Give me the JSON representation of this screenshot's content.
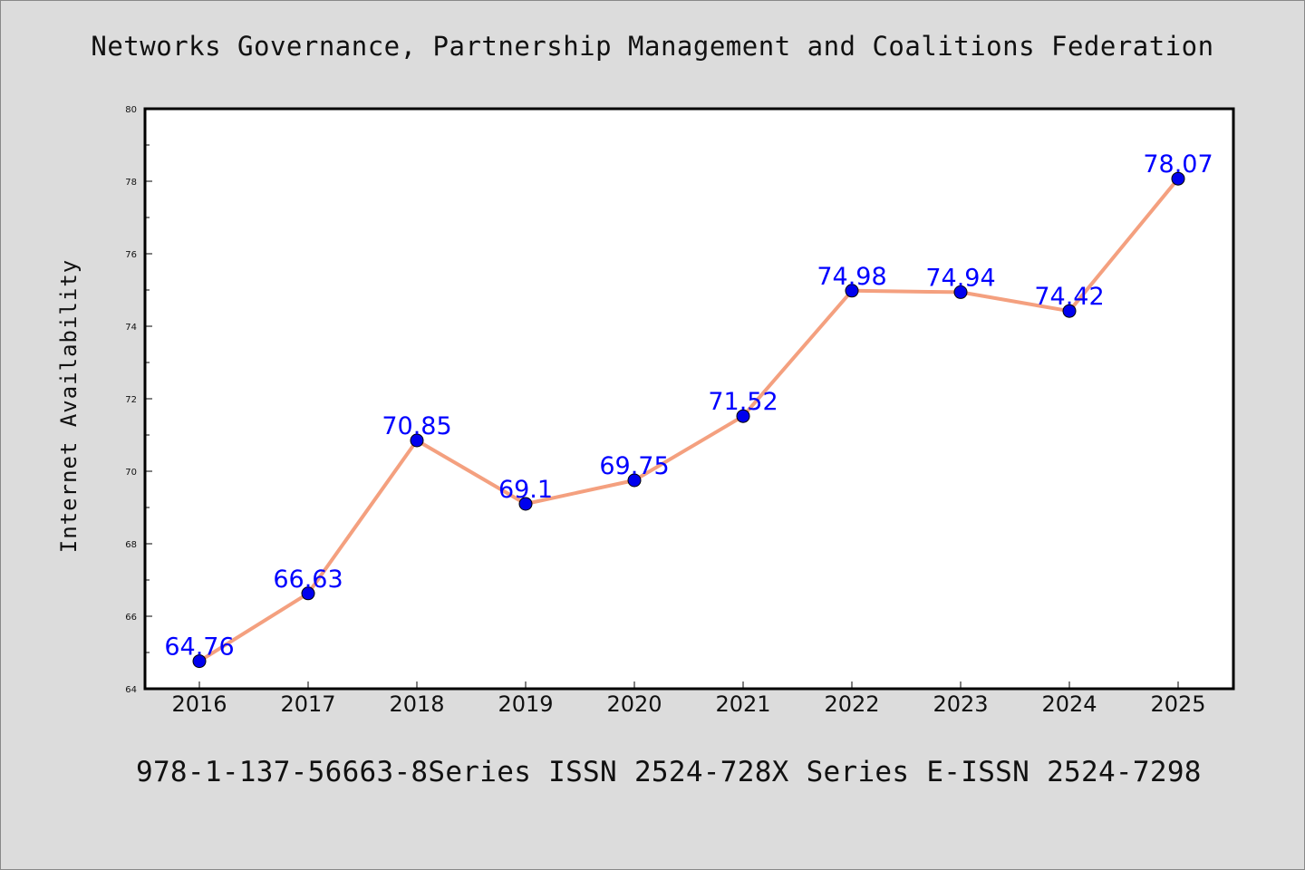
{
  "title": "Networks Governance, Partnership Management and Coalitions Federation",
  "footer": "978-1-137-56663-8Series ISSN 2524-728X Series E-ISSN 2524-7298",
  "colors": {
    "background": "#dcdcdc",
    "plot_background": "#ffffff",
    "line": "#f4a07f",
    "marker": "#0000ee",
    "data_label": "#0000ff"
  },
  "chart_data": {
    "type": "line",
    "title": "Networks Governance, Partnership Management and Coalitions Federation",
    "xlabel": "",
    "ylabel": "Internet Availability",
    "categories": [
      "2016",
      "2017",
      "2018",
      "2019",
      "2020",
      "2021",
      "2022",
      "2023",
      "2024",
      "2025"
    ],
    "series": [
      {
        "values": [
          64.76,
          66.63,
          70.85,
          69.1,
          69.75,
          71.52,
          74.98,
          74.94,
          74.42,
          78.07
        ],
        "labels": [
          "64.76",
          "66.63",
          "70.85",
          "69.1",
          "69.75",
          "71.52",
          "74.98",
          "74.94",
          "74.42",
          "78.07"
        ]
      }
    ],
    "ylim": [
      64,
      80
    ],
    "yticks": [
      "64",
      "66",
      "68",
      "70",
      "72",
      "74",
      "76",
      "78",
      "80"
    ],
    "grid": false,
    "legend": "none"
  }
}
